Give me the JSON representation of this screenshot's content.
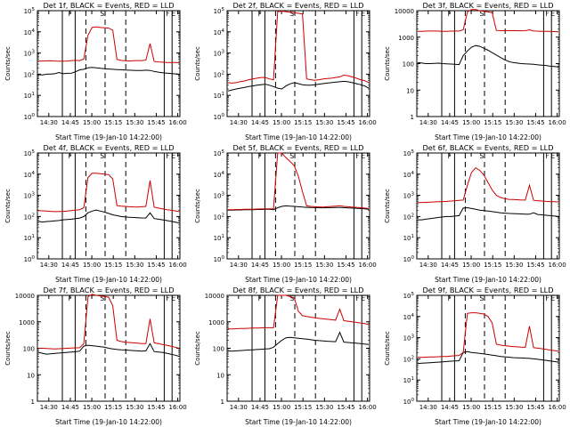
{
  "chart_data": [
    {
      "type": "line",
      "title": "Det 1f, BLACK = Events, RED = LLD",
      "xlabel": "Start Time (19-Jan-10 14:22:00)",
      "ylabel": "Counts/sec",
      "xticks": [
        "14:30",
        "14:45",
        "15:00",
        "15:15",
        "15:30",
        "15:45",
        "16:00"
      ],
      "yscale": "log",
      "ylim": [
        1,
        100000
      ],
      "yticks": [
        "10^0",
        "10^1",
        "10^2",
        "10^3",
        "10^4",
        "10^5"
      ],
      "markers": [
        "F",
        "S",
        "F",
        "E"
      ],
      "series": [
        {
          "name": "Events",
          "color": "#000000",
          "values": [
            95,
            92,
            100,
            102,
            105,
            120,
            105,
            110,
            112,
            130,
            160,
            170,
            200,
            210,
            200,
            190,
            180,
            175,
            170,
            165,
            162,
            158,
            155,
            152,
            150,
            148,
            155,
            150,
            135,
            125,
            118,
            112,
            108,
            104,
            100
          ]
        },
        {
          "name": "LLD",
          "color": "#cc0000",
          "values": [
            420,
            420,
            425,
            430,
            420,
            415,
            415,
            420,
            440,
            450,
            440,
            520,
            7000,
            16000,
            17000,
            16000,
            15500,
            15000,
            12000,
            500,
            450,
            430,
            420,
            430,
            440,
            440,
            460,
            2800,
            400,
            380,
            370,
            360,
            360,
            355,
            350
          ]
        }
      ]
    },
    {
      "type": "line",
      "title": "Det 2f, BLACK = Events, RED = LLD",
      "xlabel": "Start Time (19-Jan-10 14:22:00)",
      "ylabel": "Counts/sec",
      "xticks": [
        "14:30",
        "14:45",
        "15:00",
        "15:15",
        "15:30",
        "15:45",
        "16:00"
      ],
      "yscale": "log",
      "ylim": [
        1,
        100000
      ],
      "yticks": [
        "10^0",
        "10^1",
        "10^2",
        "10^3",
        "10^4",
        "10^5"
      ],
      "markers": [
        "F",
        "S",
        "F",
        "E"
      ],
      "series": [
        {
          "name": "Events",
          "color": "#000000",
          "values": [
            16,
            18,
            20,
            22,
            24,
            26,
            28,
            30,
            32,
            34,
            30,
            26,
            22,
            20,
            28,
            35,
            40,
            36,
            32,
            30,
            30,
            32,
            34,
            36,
            38,
            40,
            42,
            44,
            46,
            44,
            40,
            36,
            32,
            28,
            22
          ]
        },
        {
          "name": "LLD",
          "color": "#cc0000",
          "values": [
            40,
            38,
            40,
            45,
            48,
            55,
            60,
            65,
            70,
            70,
            60,
            55,
            90000,
            95000,
            90000,
            85000,
            80000,
            75000,
            70000,
            60,
            55,
            52,
            55,
            60,
            62,
            65,
            70,
            75,
            90,
            85,
            75,
            65,
            55,
            50,
            40
          ]
        }
      ]
    },
    {
      "type": "line",
      "title": "Det 3f, BLACK = Events, RED = LLD",
      "xlabel": "Start Time (19-Jan-10 14:22:00)",
      "ylabel": "Counts/sec",
      "xticks": [
        "14:30",
        "14:45",
        "15:00",
        "15:15",
        "15:30",
        "15:45",
        "16:00"
      ],
      "yscale": "log",
      "ylim": [
        1,
        10000
      ],
      "yticks": [
        "1",
        "10",
        "100",
        "1000",
        "10000"
      ],
      "markers": [
        "F",
        "S",
        "F",
        "E"
      ],
      "series": [
        {
          "name": "Events",
          "color": "#000000",
          "values": [
            110,
            105,
            100,
            100,
            102,
            104,
            100,
            98,
            96,
            95,
            92,
            200,
            300,
            420,
            480,
            450,
            380,
            320,
            260,
            210,
            170,
            140,
            120,
            110,
            105,
            100,
            98,
            96,
            95,
            90,
            88,
            85,
            80,
            78,
            75
          ]
        },
        {
          "name": "LLD",
          "color": "#cc0000",
          "values": [
            1650,
            1650,
            1680,
            1700,
            1700,
            1680,
            1650,
            1650,
            1680,
            1700,
            1700,
            1900,
            9000,
            11000,
            11000,
            10000,
            9500,
            9000,
            8500,
            1800,
            1750,
            1750,
            1750,
            1760,
            1750,
            1740,
            1750,
            1900,
            1700,
            1680,
            1660,
            1650,
            1640,
            1620,
            1600
          ]
        }
      ]
    },
    {
      "type": "line",
      "title": "Det 4f, BLACK = Events, RED = LLD",
      "xlabel": "Start Time (19-Jan-10 14:22:00)",
      "ylabel": "Counts/sec",
      "xticks": [
        "14:30",
        "14:45",
        "15:00",
        "15:15",
        "15:30",
        "15:45",
        "16:00"
      ],
      "yscale": "log",
      "ylim": [
        1,
        100000
      ],
      "yticks": [
        "10^0",
        "10^1",
        "10^2",
        "10^3",
        "10^4",
        "10^5"
      ],
      "markers": [
        "F",
        "S",
        "F",
        "E"
      ],
      "series": [
        {
          "name": "Events",
          "color": "#000000",
          "values": [
            60,
            55,
            58,
            60,
            62,
            65,
            70,
            72,
            75,
            80,
            85,
            100,
            150,
            180,
            200,
            180,
            160,
            140,
            120,
            110,
            100,
            95,
            92,
            90,
            88,
            86,
            85,
            150,
            80,
            75,
            70,
            65,
            60,
            55,
            50
          ]
        },
        {
          "name": "LLD",
          "color": "#cc0000",
          "values": [
            190,
            185,
            180,
            175,
            170,
            172,
            175,
            180,
            190,
            200,
            210,
            260,
            7000,
            11000,
            11000,
            10500,
            10000,
            9500,
            6000,
            330,
            310,
            300,
            290,
            285,
            280,
            290,
            300,
            5000,
            280,
            250,
            230,
            210,
            200,
            185,
            170
          ]
        }
      ]
    },
    {
      "type": "line",
      "title": "Det 5f, BLACK = Events, RED = LLD",
      "xlabel": "Start Time (19-Jan-10 14:22:00)",
      "ylabel": "Counts/sec",
      "xticks": [
        "14:30",
        "14:45",
        "15:00",
        "15:15",
        "15:30",
        "15:45",
        "16:00"
      ],
      "yscale": "log",
      "ylim": [
        1,
        100000
      ],
      "yticks": [
        "10^0",
        "10^1",
        "10^2",
        "10^3",
        "10^4",
        "10^5"
      ],
      "markers": [
        "F",
        "S",
        "F",
        "E"
      ],
      "series": [
        {
          "name": "Events",
          "color": "#000000",
          "values": [
            200,
            200,
            205,
            205,
            210,
            210,
            210,
            215,
            215,
            220,
            220,
            210,
            260,
            300,
            320,
            310,
            300,
            290,
            280,
            270,
            265,
            262,
            260,
            258,
            260,
            262,
            265,
            268,
            262,
            255,
            250,
            245,
            240,
            232,
            220
          ]
        },
        {
          "name": "LLD",
          "color": "#cc0000",
          "values": [
            210,
            210,
            215,
            215,
            218,
            220,
            222,
            225,
            228,
            230,
            232,
            230,
            100000,
            100000,
            60000,
            40000,
            25000,
            8000,
            1500,
            320,
            300,
            290,
            285,
            280,
            290,
            300,
            310,
            320,
            300,
            290,
            280,
            270,
            260,
            250,
            240
          ]
        }
      ]
    },
    {
      "type": "line",
      "title": "Det 6f, BLACK = Events, RED = LLD",
      "xlabel": "Start Time (19-Jan-10 14:22:00)",
      "ylabel": "Counts/sec",
      "xticks": [
        "14:30",
        "14:45",
        "15:00",
        "15:15",
        "15:30",
        "15:45",
        "16:00"
      ],
      "yscale": "log",
      "ylim": [
        1,
        100000
      ],
      "yticks": [
        "10^0",
        "10^1",
        "10^2",
        "10^3",
        "10^4",
        "10^5"
      ],
      "markers": [
        "F",
        "S",
        "F",
        "E"
      ],
      "series": [
        {
          "name": "Events",
          "color": "#000000",
          "values": [
            70,
            70,
            75,
            80,
            85,
            90,
            95,
            100,
            100,
            105,
            110,
            250,
            260,
            240,
            220,
            200,
            190,
            180,
            170,
            160,
            150,
            145,
            140,
            138,
            135,
            132,
            130,
            128,
            150,
            125,
            120,
            115,
            110,
            105,
            100
          ]
        },
        {
          "name": "LLD",
          "color": "#cc0000",
          "values": [
            450,
            460,
            470,
            480,
            490,
            500,
            510,
            520,
            540,
            560,
            580,
            600,
            3000,
            12000,
            20000,
            15000,
            9000,
            4000,
            1800,
            1000,
            800,
            700,
            650,
            640,
            620,
            600,
            600,
            3000,
            580,
            560,
            540,
            520,
            510,
            500,
            490
          ]
        }
      ]
    },
    {
      "type": "line",
      "title": "Det 7f, BLACK = Events, RED = LLD",
      "xlabel": "Start Time (19-Jan-10 14:22:00)",
      "ylabel": "Counts/sec",
      "xticks": [
        "14:30",
        "14:45",
        "15:00",
        "15:15",
        "15:30",
        "15:45",
        "16:00"
      ],
      "yscale": "log",
      "ylim": [
        1,
        10000
      ],
      "yticks": [
        "1",
        "10",
        "100",
        "1000",
        "10000"
      ],
      "markers": [
        "F",
        "S",
        "F",
        "E"
      ],
      "series": [
        {
          "name": "Events",
          "color": "#000000",
          "values": [
            70,
            65,
            60,
            62,
            64,
            66,
            68,
            70,
            72,
            74,
            78,
            120,
            130,
            125,
            120,
            115,
            110,
            100,
            95,
            90,
            88,
            86,
            84,
            82,
            80,
            78,
            80,
            150,
            75,
            72,
            70,
            65,
            60,
            55,
            50
          ]
        },
        {
          "name": "LLD",
          "color": "#cc0000",
          "values": [
            100,
            100,
            98,
            96,
            95,
            96,
            98,
            100,
            102,
            104,
            105,
            150,
            9000,
            11000,
            10000,
            9500,
            9000,
            8500,
            4000,
            200,
            180,
            170,
            165,
            160,
            155,
            150,
            150,
            1300,
            160,
            150,
            140,
            130,
            120,
            110,
            100
          ]
        }
      ]
    },
    {
      "type": "line",
      "title": "Det 8f, BLACK = Events, RED = LLD",
      "xlabel": "Start Time (19-Jan-10 14:22:00)",
      "ylabel": "Counts/sec",
      "xticks": [
        "14:30",
        "14:45",
        "15:00",
        "15:15",
        "15:30",
        "15:45",
        "16:00"
      ],
      "yscale": "log",
      "ylim": [
        1,
        10000
      ],
      "yticks": [
        "1",
        "10",
        "100",
        "1000",
        "10000"
      ],
      "markers": [
        "F",
        "S",
        "F",
        "E"
      ],
      "series": [
        {
          "name": "Events",
          "color": "#000000",
          "values": [
            80,
            78,
            80,
            82,
            84,
            86,
            88,
            90,
            92,
            94,
            96,
            110,
            150,
            200,
            250,
            260,
            250,
            240,
            230,
            220,
            210,
            200,
            195,
            190,
            185,
            180,
            178,
            400,
            170,
            165,
            160,
            155,
            150,
            145,
            140
          ]
        },
        {
          "name": "LLD",
          "color": "#cc0000",
          "values": [
            540,
            540,
            550,
            560,
            560,
            570,
            580,
            580,
            590,
            600,
            600,
            600,
            10000,
            10000,
            10000,
            9000,
            8000,
            2500,
            1700,
            1600,
            1500,
            1400,
            1350,
            1300,
            1250,
            1200,
            1150,
            3000,
            1100,
            1050,
            1000,
            950,
            900,
            850,
            800
          ]
        }
      ]
    },
    {
      "type": "line",
      "title": "Det 9f, BLACK = Events, RED = LLD",
      "xlabel": "Start Time (19-Jan-10 14:22:00)",
      "ylabel": "Counts/sec",
      "xticks": [
        "14:30",
        "14:45",
        "15:00",
        "15:15",
        "15:30",
        "15:45",
        "16:00"
      ],
      "yscale": "log",
      "ylim": [
        1,
        100000
      ],
      "yticks": [
        "10^0",
        "10^1",
        "10^2",
        "10^3",
        "10^4",
        "10^5"
      ],
      "markers": [
        "F",
        "S",
        "F",
        "E"
      ],
      "series": [
        {
          "name": "Events",
          "color": "#000000",
          "values": [
            60,
            62,
            64,
            66,
            68,
            70,
            72,
            75,
            78,
            80,
            82,
            200,
            220,
            200,
            190,
            180,
            170,
            160,
            150,
            140,
            130,
            125,
            120,
            115,
            112,
            110,
            108,
            105,
            100,
            95,
            90,
            85,
            80,
            75,
            70
          ]
        },
        {
          "name": "LLD",
          "color": "#cc0000",
          "values": [
            120,
            118,
            120,
            122,
            124,
            126,
            128,
            130,
            135,
            140,
            145,
            200,
            14000,
            15000,
            15000,
            14000,
            13000,
            10000,
            5000,
            500,
            450,
            420,
            400,
            380,
            370,
            360,
            350,
            3500,
            340,
            320,
            300,
            280,
            260,
            245,
            230
          ]
        }
      ]
    }
  ]
}
